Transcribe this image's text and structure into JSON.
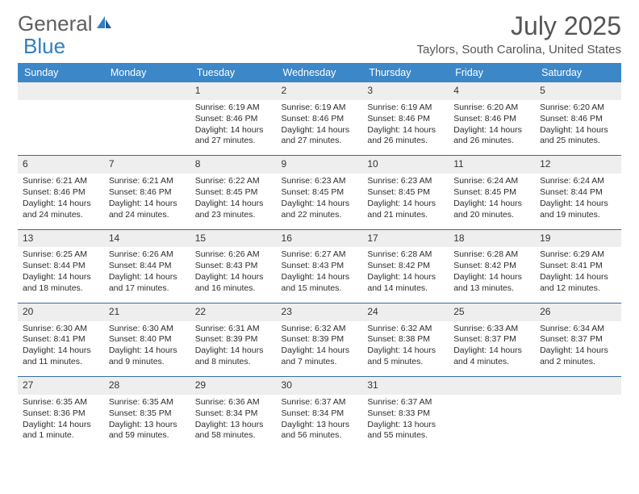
{
  "brand": {
    "general": "General",
    "blue": "Blue"
  },
  "title": "July 2025",
  "location": "Taylors, South Carolina, United States",
  "colors": {
    "header_bg": "#3b87c8",
    "header_fg": "#ffffff",
    "daynum_bg": "#eeeeee",
    "rule": "#3b6a9a",
    "text": "#333333",
    "brand_gray": "#5e5e5e",
    "brand_blue": "#2f7fc2"
  },
  "weekdays": [
    "Sunday",
    "Monday",
    "Tuesday",
    "Wednesday",
    "Thursday",
    "Friday",
    "Saturday"
  ],
  "weeks": [
    [
      null,
      null,
      {
        "n": "1",
        "sr": "6:19 AM",
        "ss": "8:46 PM",
        "d1": "Daylight: 14 hours",
        "d2": "and 27 minutes."
      },
      {
        "n": "2",
        "sr": "6:19 AM",
        "ss": "8:46 PM",
        "d1": "Daylight: 14 hours",
        "d2": "and 27 minutes."
      },
      {
        "n": "3",
        "sr": "6:19 AM",
        "ss": "8:46 PM",
        "d1": "Daylight: 14 hours",
        "d2": "and 26 minutes."
      },
      {
        "n": "4",
        "sr": "6:20 AM",
        "ss": "8:46 PM",
        "d1": "Daylight: 14 hours",
        "d2": "and 26 minutes."
      },
      {
        "n": "5",
        "sr": "6:20 AM",
        "ss": "8:46 PM",
        "d1": "Daylight: 14 hours",
        "d2": "and 25 minutes."
      }
    ],
    [
      {
        "n": "6",
        "sr": "6:21 AM",
        "ss": "8:46 PM",
        "d1": "Daylight: 14 hours",
        "d2": "and 24 minutes."
      },
      {
        "n": "7",
        "sr": "6:21 AM",
        "ss": "8:46 PM",
        "d1": "Daylight: 14 hours",
        "d2": "and 24 minutes."
      },
      {
        "n": "8",
        "sr": "6:22 AM",
        "ss": "8:45 PM",
        "d1": "Daylight: 14 hours",
        "d2": "and 23 minutes."
      },
      {
        "n": "9",
        "sr": "6:23 AM",
        "ss": "8:45 PM",
        "d1": "Daylight: 14 hours",
        "d2": "and 22 minutes."
      },
      {
        "n": "10",
        "sr": "6:23 AM",
        "ss": "8:45 PM",
        "d1": "Daylight: 14 hours",
        "d2": "and 21 minutes."
      },
      {
        "n": "11",
        "sr": "6:24 AM",
        "ss": "8:45 PM",
        "d1": "Daylight: 14 hours",
        "d2": "and 20 minutes."
      },
      {
        "n": "12",
        "sr": "6:24 AM",
        "ss": "8:44 PM",
        "d1": "Daylight: 14 hours",
        "d2": "and 19 minutes."
      }
    ],
    [
      {
        "n": "13",
        "sr": "6:25 AM",
        "ss": "8:44 PM",
        "d1": "Daylight: 14 hours",
        "d2": "and 18 minutes."
      },
      {
        "n": "14",
        "sr": "6:26 AM",
        "ss": "8:44 PM",
        "d1": "Daylight: 14 hours",
        "d2": "and 17 minutes."
      },
      {
        "n": "15",
        "sr": "6:26 AM",
        "ss": "8:43 PM",
        "d1": "Daylight: 14 hours",
        "d2": "and 16 minutes."
      },
      {
        "n": "16",
        "sr": "6:27 AM",
        "ss": "8:43 PM",
        "d1": "Daylight: 14 hours",
        "d2": "and 15 minutes."
      },
      {
        "n": "17",
        "sr": "6:28 AM",
        "ss": "8:42 PM",
        "d1": "Daylight: 14 hours",
        "d2": "and 14 minutes."
      },
      {
        "n": "18",
        "sr": "6:28 AM",
        "ss": "8:42 PM",
        "d1": "Daylight: 14 hours",
        "d2": "and 13 minutes."
      },
      {
        "n": "19",
        "sr": "6:29 AM",
        "ss": "8:41 PM",
        "d1": "Daylight: 14 hours",
        "d2": "and 12 minutes."
      }
    ],
    [
      {
        "n": "20",
        "sr": "6:30 AM",
        "ss": "8:41 PM",
        "d1": "Daylight: 14 hours",
        "d2": "and 11 minutes."
      },
      {
        "n": "21",
        "sr": "6:30 AM",
        "ss": "8:40 PM",
        "d1": "Daylight: 14 hours",
        "d2": "and 9 minutes."
      },
      {
        "n": "22",
        "sr": "6:31 AM",
        "ss": "8:39 PM",
        "d1": "Daylight: 14 hours",
        "d2": "and 8 minutes."
      },
      {
        "n": "23",
        "sr": "6:32 AM",
        "ss": "8:39 PM",
        "d1": "Daylight: 14 hours",
        "d2": "and 7 minutes."
      },
      {
        "n": "24",
        "sr": "6:32 AM",
        "ss": "8:38 PM",
        "d1": "Daylight: 14 hours",
        "d2": "and 5 minutes."
      },
      {
        "n": "25",
        "sr": "6:33 AM",
        "ss": "8:37 PM",
        "d1": "Daylight: 14 hours",
        "d2": "and 4 minutes."
      },
      {
        "n": "26",
        "sr": "6:34 AM",
        "ss": "8:37 PM",
        "d1": "Daylight: 14 hours",
        "d2": "and 2 minutes."
      }
    ],
    [
      {
        "n": "27",
        "sr": "6:35 AM",
        "ss": "8:36 PM",
        "d1": "Daylight: 14 hours",
        "d2": "and 1 minute."
      },
      {
        "n": "28",
        "sr": "6:35 AM",
        "ss": "8:35 PM",
        "d1": "Daylight: 13 hours",
        "d2": "and 59 minutes."
      },
      {
        "n": "29",
        "sr": "6:36 AM",
        "ss": "8:34 PM",
        "d1": "Daylight: 13 hours",
        "d2": "and 58 minutes."
      },
      {
        "n": "30",
        "sr": "6:37 AM",
        "ss": "8:34 PM",
        "d1": "Daylight: 13 hours",
        "d2": "and 56 minutes."
      },
      {
        "n": "31",
        "sr": "6:37 AM",
        "ss": "8:33 PM",
        "d1": "Daylight: 13 hours",
        "d2": "and 55 minutes."
      },
      null,
      null
    ]
  ],
  "labels": {
    "sunrise": "Sunrise: ",
    "sunset": "Sunset: "
  }
}
